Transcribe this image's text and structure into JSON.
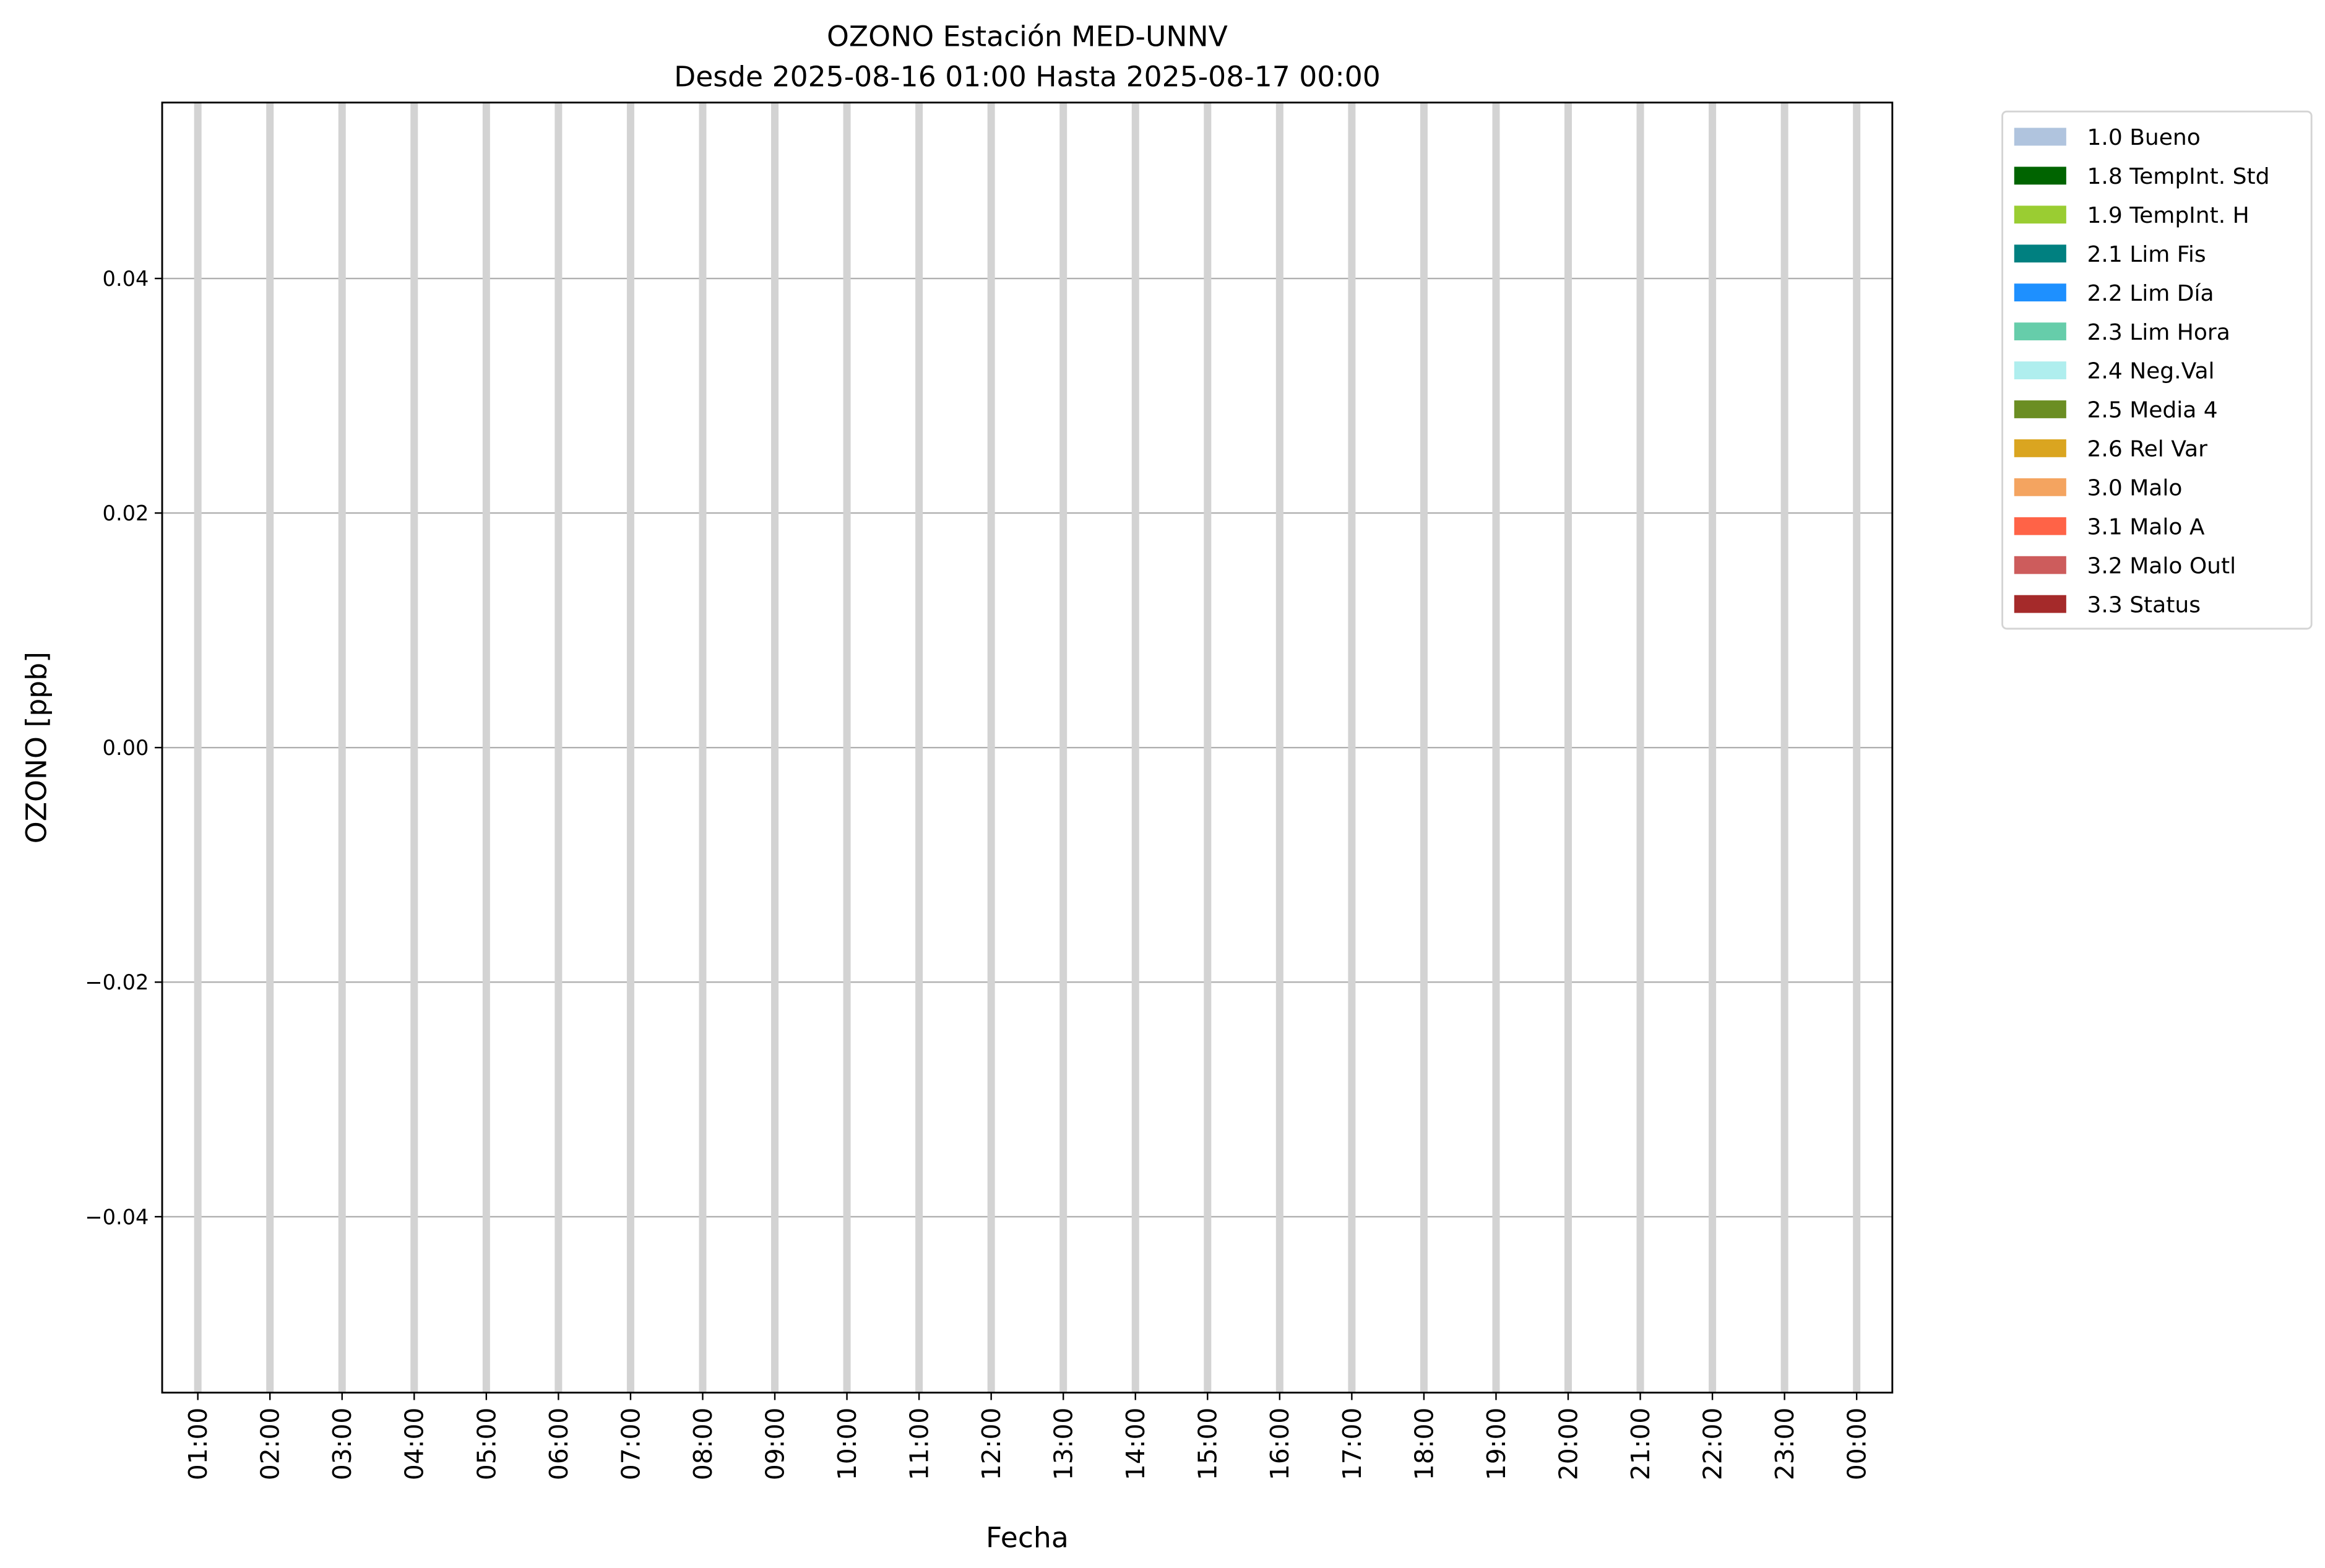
{
  "chart_data": {
    "type": "bar",
    "title": "OZONO Estación MED-UNNV",
    "subtitle": "Desde 2025-08-16 01:00 Hasta 2025-08-17 00:00",
    "xlabel": "Fecha",
    "ylabel": "OZONO [ppb]",
    "categories": [
      "01:00",
      "02:00",
      "03:00",
      "04:00",
      "05:00",
      "06:00",
      "07:00",
      "08:00",
      "09:00",
      "10:00",
      "11:00",
      "12:00",
      "13:00",
      "14:00",
      "15:00",
      "16:00",
      "17:00",
      "18:00",
      "19:00",
      "20:00",
      "21:00",
      "22:00",
      "23:00",
      "00:00"
    ],
    "values": [
      0,
      0,
      0,
      0,
      0,
      0,
      0,
      0,
      0,
      0,
      0,
      0,
      0,
      0,
      0,
      0,
      0,
      0,
      0,
      0,
      0,
      0,
      0,
      0
    ],
    "yticks": [
      -0.04,
      -0.02,
      0.0,
      0.02,
      0.04
    ],
    "ytick_labels": [
      "−0.04",
      "−0.02",
      "0.00",
      "0.02",
      "0.04"
    ],
    "ylim": [
      -0.055,
      0.055
    ],
    "grid": true,
    "bar_color": "#d3d3d3",
    "gridline_color": "#b0b0b0",
    "legend_placement": "outside-top-right",
    "legend": [
      {
        "label": "1.0 Bueno",
        "color": "#b0c4de"
      },
      {
        "label": "1.8 TempInt. Std",
        "color": "#006400"
      },
      {
        "label": "1.9 TempInt. H",
        "color": "#9acd32"
      },
      {
        "label": "2.1 Lim Fis",
        "color": "#008080"
      },
      {
        "label": "2.2 Lim Día",
        "color": "#1e90ff"
      },
      {
        "label": "2.3 Lim Hora",
        "color": "#66cdaa"
      },
      {
        "label": "2.4 Neg.Val",
        "color": "#afeeee"
      },
      {
        "label": "2.5 Media 4",
        "color": "#6b8e23"
      },
      {
        "label": "2.6 Rel Var",
        "color": "#daa520"
      },
      {
        "label": "3.0 Malo",
        "color": "#f4a460"
      },
      {
        "label": "3.1 Malo A",
        "color": "#ff6347"
      },
      {
        "label": "3.2 Malo Outl",
        "color": "#cd5c5c"
      },
      {
        "label": "3.3 Status",
        "color": "#a52a2a"
      }
    ]
  }
}
